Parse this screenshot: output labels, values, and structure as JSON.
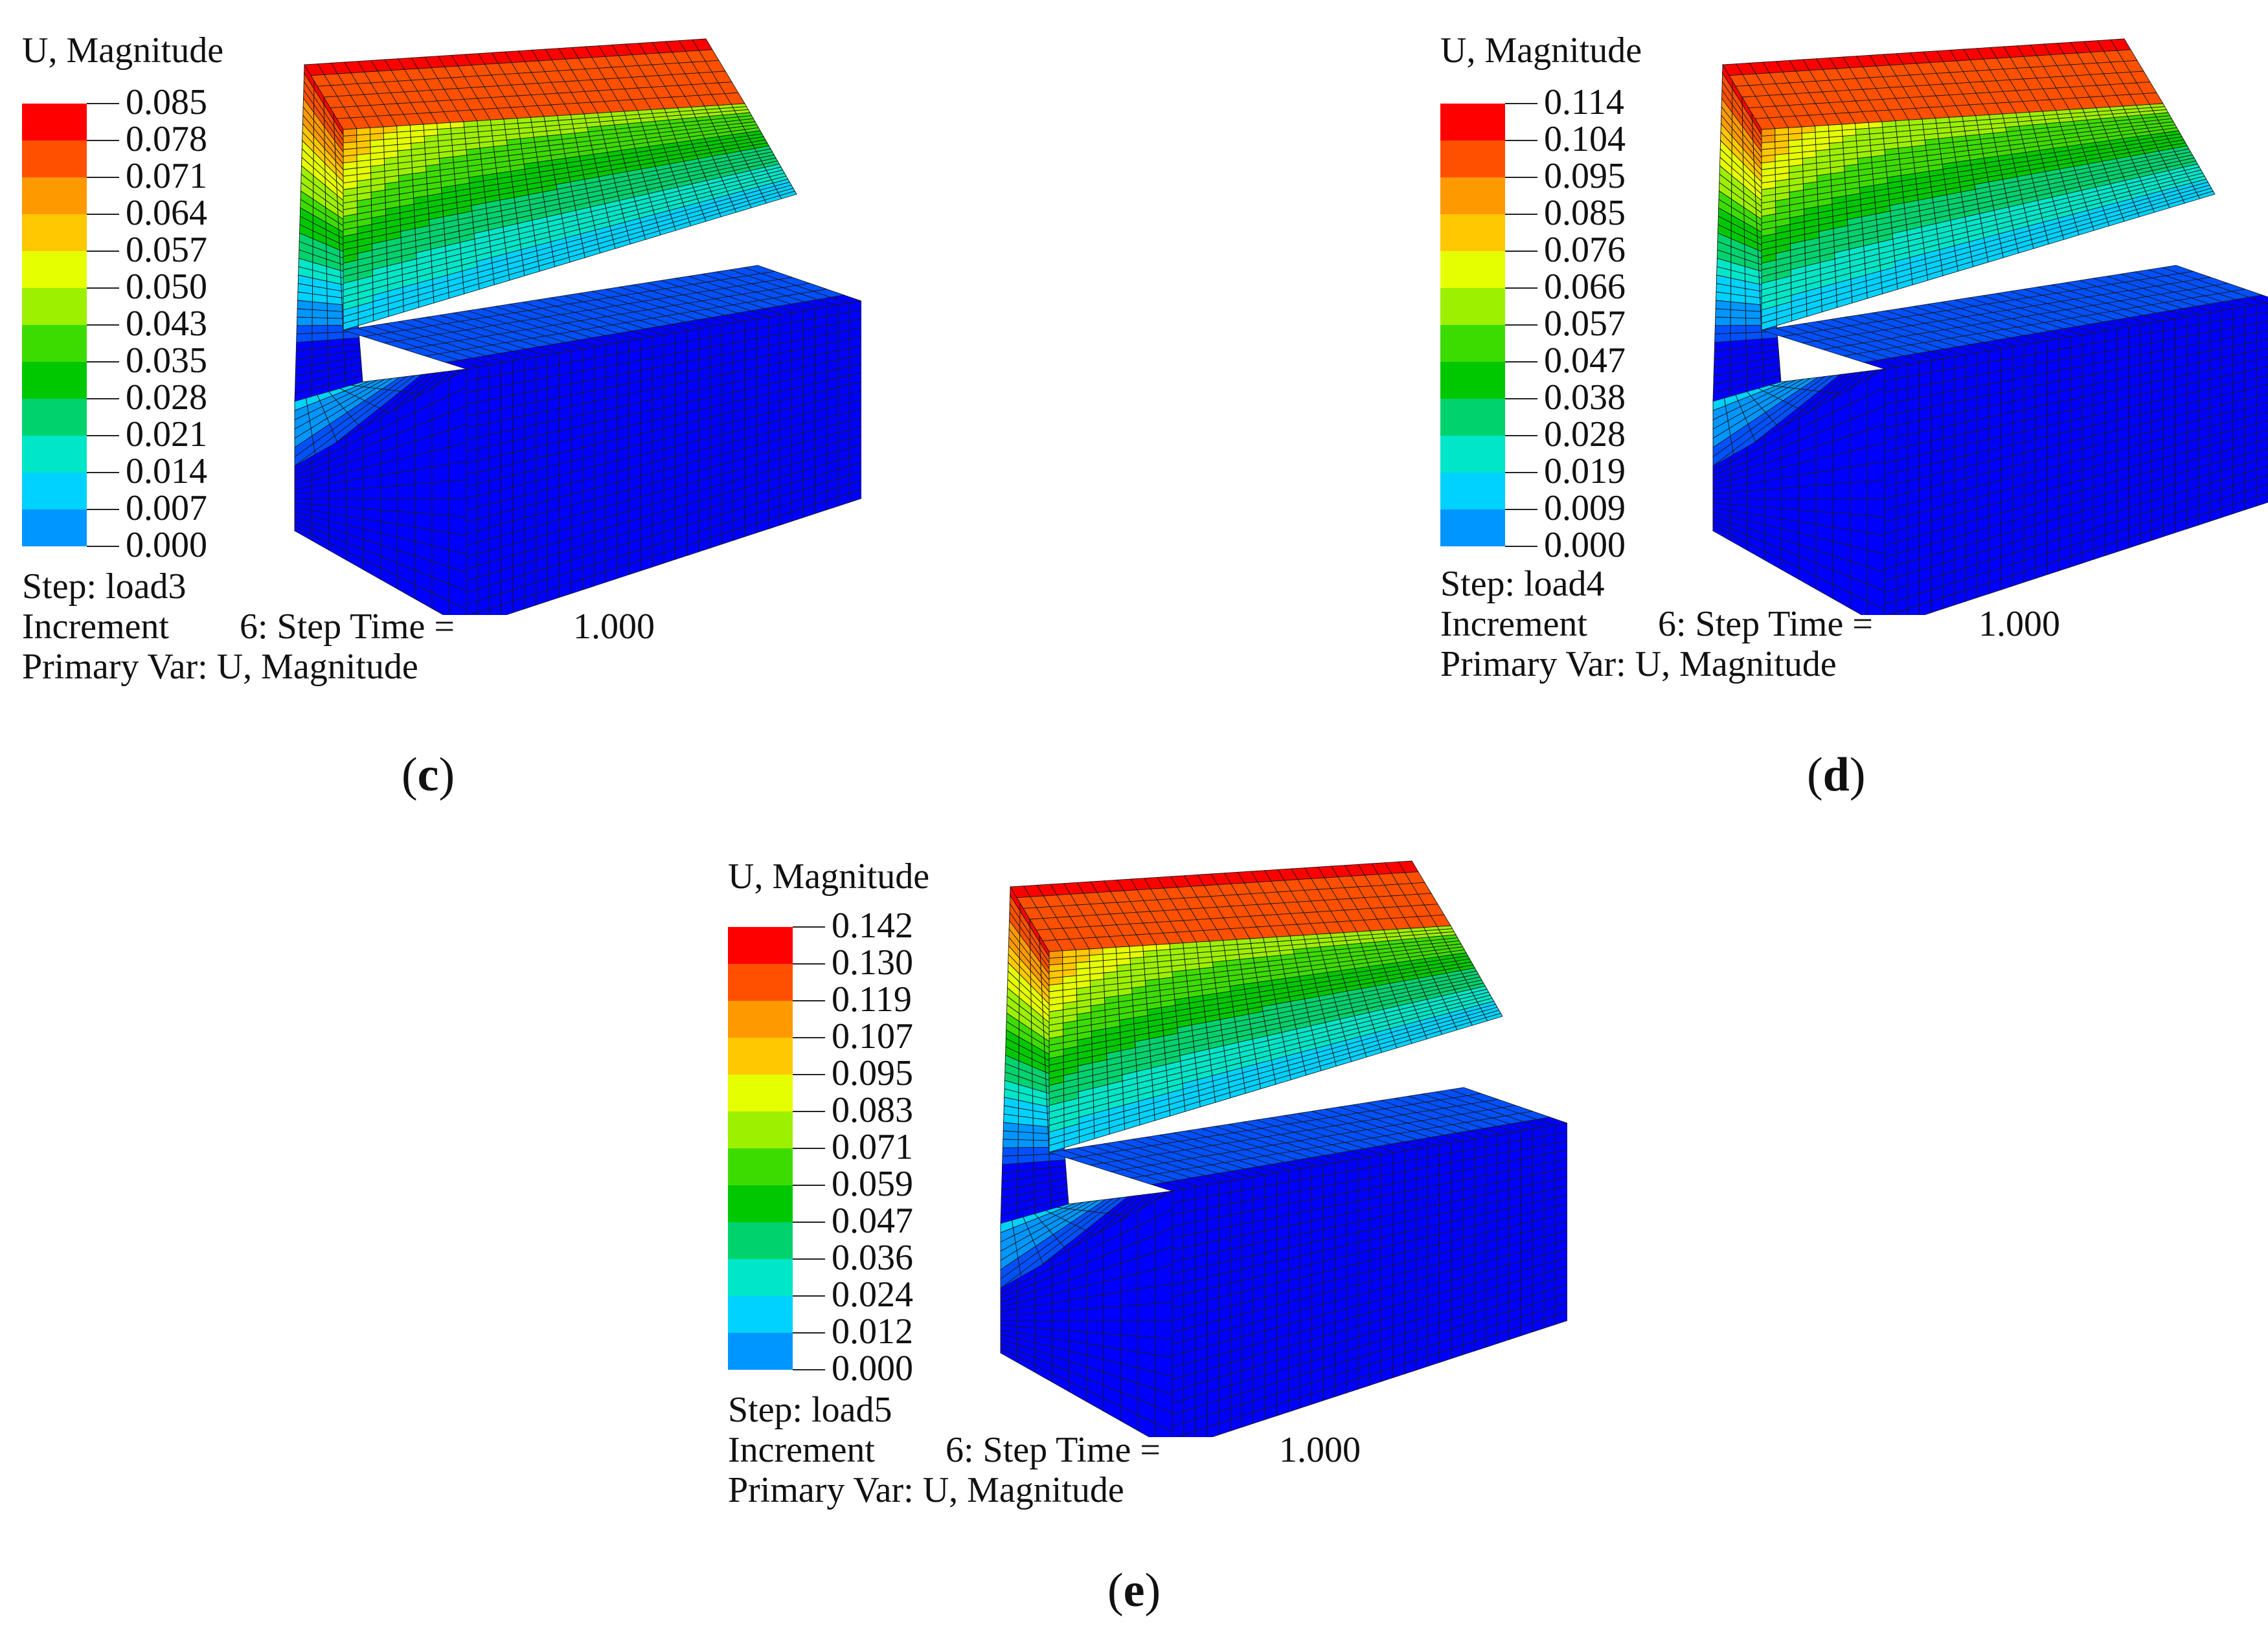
{
  "colors": {
    "scale": [
      "#ff0000",
      "#ff5000",
      "#ff9900",
      "#ffc800",
      "#e6ff00",
      "#9cf000",
      "#3ddc00",
      "#00c800",
      "#00d26e",
      "#00e6c8",
      "#00d2ff",
      "#0096ff",
      "#0050ff",
      "#0000ff"
    ],
    "mesh_line": "#1a1a1a",
    "background": "#ffffff"
  },
  "panels": [
    {
      "id": "c",
      "legend_title": "U, Magnitude",
      "ticks": [
        "0.085",
        "0.078",
        "0.071",
        "0.064",
        "0.057",
        "0.050",
        "0.043",
        "0.035",
        "0.028",
        "0.021",
        "0.014",
        "0.007",
        "0.000"
      ],
      "step": "Step: load3",
      "increment_label": "Increment",
      "increment_value": "6: Step Time =",
      "step_time": "1.000",
      "primary_var": "Primary Var: U, Magnitude",
      "caption_open": "(",
      "caption_letter": "c",
      "caption_close": ")"
    },
    {
      "id": "d",
      "legend_title": "U, Magnitude",
      "ticks": [
        "0.114",
        "0.104",
        "0.095",
        "0.085",
        "0.076",
        "0.066",
        "0.057",
        "0.047",
        "0.038",
        "0.028",
        "0.019",
        "0.009",
        "0.000"
      ],
      "step": "Step: load4",
      "increment_label": "Increment",
      "increment_value": "6: Step Time =",
      "step_time": "1.000",
      "primary_var": "Primary Var: U, Magnitude",
      "caption_open": "(",
      "caption_letter": "d",
      "caption_close": ")"
    },
    {
      "id": "e",
      "legend_title": "U, Magnitude",
      "ticks": [
        "0.142",
        "0.130",
        "0.119",
        "0.107",
        "0.095",
        "0.083",
        "0.071",
        "0.059",
        "0.047",
        "0.036",
        "0.024",
        "0.012",
        "0.000"
      ],
      "step": "Step: load5",
      "increment_label": "Increment",
      "increment_value": "6: Step Time =",
      "step_time": "1.000",
      "primary_var": "Primary Var: U, Magnitude",
      "caption_open": "(",
      "caption_letter": "e",
      "caption_close": ")"
    }
  ]
}
